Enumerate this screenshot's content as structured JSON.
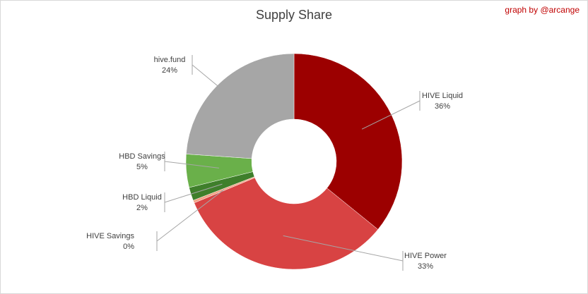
{
  "chart_data": {
    "type": "donut",
    "title": "Supply Share",
    "credit": "graph by @arcange",
    "categories": [
      "HIVE Liquid",
      "HIVE Power",
      "HIVE Savings",
      "HBD Liquid",
      "HBD Savings",
      "hive.fund"
    ],
    "values": [
      36,
      33,
      0.4,
      2,
      5,
      24
    ],
    "value_labels": [
      "36%",
      "33%",
      "0%",
      "2%",
      "5%",
      "24%"
    ],
    "colors": [
      "#9c0000",
      "#d84343",
      "#f2a385",
      "#3f7f2b",
      "#6ab04a",
      "#a6a6a6"
    ]
  }
}
